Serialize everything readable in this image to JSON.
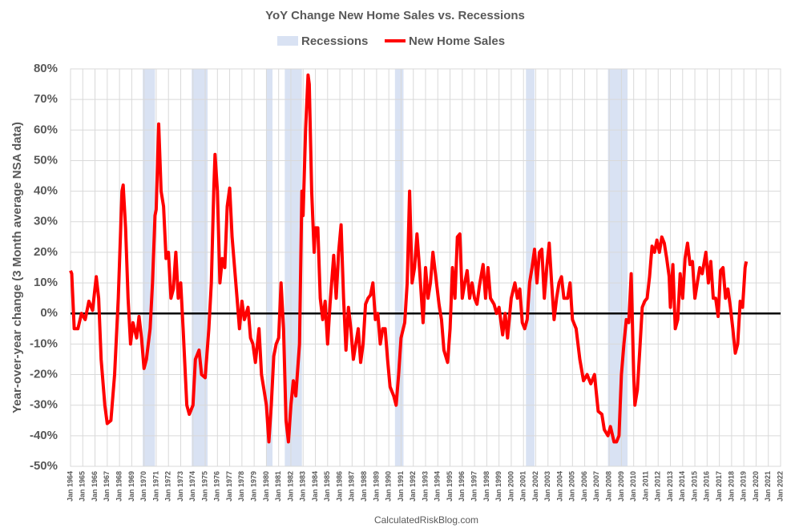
{
  "chart_data": {
    "type": "line",
    "title": "YoY Change New Home Sales vs. Recessions",
    "y_label": "Year-over-year change (3 Month average NSA data)",
    "source": "CalculatedRiskBlog.com",
    "recession_name": "Recessions",
    "recession_color": "#d9e2f3",
    "recessions": [
      [
        1969.9,
        1970.9
      ],
      [
        1973.9,
        1975.2
      ],
      [
        1980.0,
        1980.5
      ],
      [
        1981.5,
        1982.9
      ],
      [
        1990.5,
        1991.2
      ],
      [
        2001.2,
        2001.9
      ],
      [
        2007.9,
        2009.5
      ]
    ],
    "xlim": [
      1964,
      2022
    ],
    "ylim": [
      -50,
      80
    ],
    "yticks": [
      {
        "value": 80,
        "label": "80%"
      },
      {
        "value": 70,
        "label": "70%"
      },
      {
        "value": 60,
        "label": "60%"
      },
      {
        "value": 50,
        "label": "50%"
      },
      {
        "value": 40,
        "label": "40%"
      },
      {
        "value": 30,
        "label": "30%"
      },
      {
        "value": 20,
        "label": "20%"
      },
      {
        "value": 10,
        "label": "10%"
      },
      {
        "value": 0,
        "label": "0%"
      },
      {
        "value": -10,
        "label": "-10%"
      },
      {
        "value": -20,
        "label": "-20%"
      },
      {
        "value": -30,
        "label": "-30%"
      },
      {
        "value": -40,
        "label": "-40%"
      },
      {
        "value": -50,
        "label": "-50%"
      }
    ],
    "xticks": [
      {
        "value": 1964,
        "label": "Jan 1964"
      },
      {
        "value": 1965,
        "label": "Jan 1965"
      },
      {
        "value": 1966,
        "label": "Jan 1966"
      },
      {
        "value": 1967,
        "label": "Jan 1967"
      },
      {
        "value": 1968,
        "label": "Jan 1968"
      },
      {
        "value": 1969,
        "label": "Jan 1969"
      },
      {
        "value": 1970,
        "label": "Jan 1970"
      },
      {
        "value": 1971,
        "label": "Jan 1971"
      },
      {
        "value": 1972,
        "label": "Jan 1972"
      },
      {
        "value": 1973,
        "label": "Jan 1973"
      },
      {
        "value": 1974,
        "label": "Jan 1974"
      },
      {
        "value": 1975,
        "label": "Jan 1975"
      },
      {
        "value": 1976,
        "label": "Jan 1976"
      },
      {
        "value": 1977,
        "label": "Jan 1977"
      },
      {
        "value": 1978,
        "label": "Jan 1978"
      },
      {
        "value": 1979,
        "label": "Jan 1979"
      },
      {
        "value": 1980,
        "label": "Jan 1980"
      },
      {
        "value": 1981,
        "label": "Jan 1981"
      },
      {
        "value": 1982,
        "label": "Jan 1982"
      },
      {
        "value": 1983,
        "label": "Jan 1983"
      },
      {
        "value": 1984,
        "label": "Jan 1984"
      },
      {
        "value": 1985,
        "label": "Jan 1985"
      },
      {
        "value": 1986,
        "label": "Jan 1986"
      },
      {
        "value": 1987,
        "label": "Jan 1987"
      },
      {
        "value": 1988,
        "label": "Jan 1988"
      },
      {
        "value": 1989,
        "label": "Jan 1989"
      },
      {
        "value": 1990,
        "label": "Jan 1990"
      },
      {
        "value": 1991,
        "label": "Jan 1991"
      },
      {
        "value": 1992,
        "label": "Jan 1992"
      },
      {
        "value": 1993,
        "label": "Jan 1993"
      },
      {
        "value": 1994,
        "label": "Jan 1994"
      },
      {
        "value": 1995,
        "label": "Jan 1995"
      },
      {
        "value": 1996,
        "label": "Jan 1996"
      },
      {
        "value": 1997,
        "label": "Jan 1997"
      },
      {
        "value": 1998,
        "label": "Jan 1998"
      },
      {
        "value": 1999,
        "label": "Jan 1999"
      },
      {
        "value": 2000,
        "label": "Jan 2000"
      },
      {
        "value": 2001,
        "label": "Jan 2001"
      },
      {
        "value": 2002,
        "label": "Jan 2002"
      },
      {
        "value": 2003,
        "label": "Jan 2003"
      },
      {
        "value": 2004,
        "label": "Jan 2004"
      },
      {
        "value": 2005,
        "label": "Jan 2005"
      },
      {
        "value": 2006,
        "label": "Jan 2006"
      },
      {
        "value": 2007,
        "label": "Jan 2007"
      },
      {
        "value": 2008,
        "label": "Jan 2008"
      },
      {
        "value": 2009,
        "label": "Jan 2009"
      },
      {
        "value": 2010,
        "label": "Jan 2010"
      },
      {
        "value": 2011,
        "label": "Jan 2011"
      },
      {
        "value": 2012,
        "label": "Jan 2012"
      },
      {
        "value": 2013,
        "label": "Jan 2013"
      },
      {
        "value": 2014,
        "label": "Jan 2014"
      },
      {
        "value": 2015,
        "label": "Jan 2015"
      },
      {
        "value": 2016,
        "label": "Jan 2016"
      },
      {
        "value": 2017,
        "label": "Jan 2017"
      },
      {
        "value": 2018,
        "label": "Jan 2018"
      },
      {
        "value": 2019,
        "label": "Jan 2019"
      },
      {
        "value": 2020,
        "label": "Jan 2020"
      },
      {
        "value": 2021,
        "label": "Jan 2021"
      },
      {
        "value": 2022,
        "label": "Jan 2022"
      }
    ],
    "grid": true,
    "x": [
      1964.0,
      1964.1,
      1964.3,
      1964.6,
      1964.9,
      1965.2,
      1965.5,
      1965.8,
      1966.1,
      1966.3,
      1966.5,
      1966.8,
      1967.0,
      1967.3,
      1967.6,
      1967.9,
      1968.2,
      1968.3,
      1968.5,
      1968.7,
      1968.9,
      1969.1,
      1969.4,
      1969.6,
      1969.8,
      1970.0,
      1970.2,
      1970.5,
      1970.7,
      1970.9,
      1971.0,
      1971.2,
      1971.4,
      1971.6,
      1971.8,
      1972.0,
      1972.2,
      1972.4,
      1972.6,
      1972.8,
      1973.0,
      1973.2,
      1973.5,
      1973.7,
      1974.0,
      1974.2,
      1974.5,
      1974.7,
      1975.0,
      1975.3,
      1975.5,
      1975.7,
      1975.8,
      1976.0,
      1976.2,
      1976.4,
      1976.6,
      1976.8,
      1977.0,
      1977.2,
      1977.4,
      1977.6,
      1977.8,
      1978.0,
      1978.2,
      1978.5,
      1978.7,
      1978.9,
      1979.1,
      1979.4,
      1979.6,
      1979.8,
      1980.0,
      1980.2,
      1980.4,
      1980.6,
      1980.8,
      1981.0,
      1981.2,
      1981.4,
      1981.6,
      1981.8,
      1982.0,
      1982.2,
      1982.4,
      1982.7,
      1982.9,
      1983.0,
      1983.2,
      1983.4,
      1983.5,
      1983.7,
      1983.9,
      1984.0,
      1984.2,
      1984.4,
      1984.6,
      1984.8,
      1985.0,
      1985.2,
      1985.5,
      1985.7,
      1985.9,
      1986.1,
      1986.3,
      1986.5,
      1986.7,
      1986.9,
      1987.1,
      1987.3,
      1987.5,
      1987.7,
      1987.9,
      1988.1,
      1988.3,
      1988.5,
      1988.7,
      1988.9,
      1989.1,
      1989.3,
      1989.5,
      1989.7,
      1989.9,
      1990.1,
      1990.4,
      1990.6,
      1990.8,
      1991.0,
      1991.3,
      1991.5,
      1991.7,
      1991.9,
      1992.1,
      1992.3,
      1992.5,
      1992.8,
      1993.0,
      1993.2,
      1993.4,
      1993.6,
      1993.9,
      1994.1,
      1994.3,
      1994.5,
      1994.8,
      1995.0,
      1995.2,
      1995.4,
      1995.6,
      1995.8,
      1996.0,
      1996.2,
      1996.4,
      1996.6,
      1996.8,
      1997.0,
      1997.2,
      1997.4,
      1997.7,
      1997.9,
      1998.1,
      1998.3,
      1998.6,
      1998.8,
      1999.0,
      1999.3,
      1999.5,
      1999.7,
      2000.0,
      2000.3,
      2000.5,
      2000.7,
      2000.9,
      2001.1,
      2001.3,
      2001.5,
      2001.7,
      2001.9,
      2002.1,
      2002.3,
      2002.5,
      2002.7,
      2002.9,
      2003.1,
      2003.3,
      2003.5,
      2003.7,
      2003.9,
      2004.1,
      2004.3,
      2004.6,
      2004.8,
      2005.0,
      2005.3,
      2005.6,
      2005.9,
      2006.2,
      2006.5,
      2006.8,
      2007.1,
      2007.4,
      2007.6,
      2007.9,
      2008.1,
      2008.4,
      2008.6,
      2008.8,
      2009.0,
      2009.2,
      2009.4,
      2009.6,
      2009.8,
      2010.0,
      2010.1,
      2010.3,
      2010.5,
      2010.7,
      2010.9,
      2011.1,
      2011.3,
      2011.5,
      2011.7,
      2011.9,
      2012.1,
      2012.3,
      2012.5,
      2012.7,
      2012.9,
      2013.0,
      2013.2,
      2013.4,
      2013.6,
      2013.8,
      2014.0,
      2014.2,
      2014.4,
      2014.6,
      2014.8,
      2015.0,
      2015.2,
      2015.4,
      2015.6,
      2015.9,
      2016.1,
      2016.3,
      2016.5,
      2016.7,
      2016.9,
      2017.1,
      2017.3,
      2017.5,
      2017.7,
      2017.9,
      2018.1,
      2018.3,
      2018.5,
      2018.7,
      2018.9,
      2019.1,
      2019.2
    ],
    "series": [
      {
        "name": "New Home Sales",
        "color": "#ff0000",
        "values": [
          14,
          13,
          -5,
          -5,
          0,
          -2,
          4,
          1,
          12,
          5,
          -15,
          -30,
          -36,
          -35,
          -20,
          5,
          40,
          42,
          28,
          5,
          -10,
          -3,
          -8,
          -1,
          -8,
          -18,
          -15,
          -5,
          10,
          32,
          34,
          62,
          40,
          35,
          18,
          20,
          5,
          8,
          20,
          5,
          10,
          -5,
          -30,
          -33,
          -30,
          -15,
          -12,
          -20,
          -21,
          -5,
          10,
          40,
          52,
          40,
          10,
          18,
          15,
          35,
          41,
          25,
          15,
          5,
          -5,
          4,
          -2,
          2,
          -8,
          -10,
          -16,
          -5,
          -20,
          -25,
          -30,
          -42,
          -30,
          -14,
          -10,
          -8,
          10,
          -5,
          -35,
          -42,
          -30,
          -22,
          -27,
          -10,
          40,
          32,
          60,
          78,
          75,
          40,
          20,
          28,
          28,
          5,
          -2,
          4,
          -10,
          3,
          19,
          5,
          20,
          29,
          5,
          -12,
          2,
          -5,
          -15,
          -10,
          -5,
          -16,
          -10,
          3,
          5,
          6,
          10,
          -2,
          0,
          -10,
          -5,
          -5,
          -15,
          -24,
          -27,
          -30,
          -20,
          -8,
          -3,
          10,
          40,
          10,
          15,
          26,
          15,
          -3,
          15,
          5,
          10,
          20,
          10,
          3,
          -2,
          -12,
          -16,
          -5,
          15,
          5,
          25,
          26,
          5,
          10,
          14,
          5,
          10,
          5,
          3,
          9,
          16,
          5,
          15,
          5,
          3,
          0,
          2,
          -7,
          0,
          -8,
          5,
          10,
          5,
          8,
          -3,
          -5,
          -2,
          10,
          15,
          21,
          10,
          20,
          21,
          5,
          15,
          23,
          10,
          -2,
          5,
          10,
          12,
          5,
          5,
          10,
          -2,
          -5,
          -15,
          -22,
          -20,
          -23,
          -20,
          -32,
          -33,
          -38,
          -40,
          -37,
          -42,
          -42,
          -40,
          -20,
          -10,
          -2,
          -3,
          13,
          -20,
          -30,
          -25,
          -12,
          2,
          4,
          5,
          12,
          22,
          20,
          24,
          20,
          25,
          23,
          18,
          12,
          2,
          16,
          -5,
          -2,
          13,
          5,
          18,
          23,
          16,
          17,
          5,
          10,
          15,
          13,
          20,
          10,
          17,
          5,
          5,
          -1,
          14,
          15,
          5,
          8,
          2,
          -5,
          -13,
          -10,
          4,
          2,
          15,
          17
        ]
      }
    ]
  }
}
